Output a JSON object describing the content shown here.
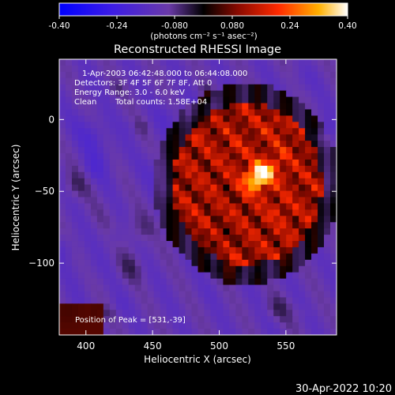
{
  "chart_data": {
    "type": "heatmap",
    "title": "Reconstructed RHESSI Image",
    "xlabel": "Heliocentric X (arcsec)",
    "ylabel": "Heliocentric Y (arcsec)",
    "xlim": [
      380,
      588
    ],
    "ylim": [
      -150,
      42
    ],
    "xticks": [
      400,
      450,
      500,
      550
    ],
    "yticks": [
      0,
      -50,
      -100
    ],
    "colorbar": {
      "range": [
        -0.4,
        0.4
      ],
      "tick_values": [
        -0.4,
        -0.24,
        -0.08,
        0.08,
        0.24,
        0.4
      ],
      "tick_labels": [
        "-0.40",
        "-0.24",
        "-0.080",
        "0.080",
        "0.24",
        "0.40"
      ],
      "unit": "(photons cm⁻² s⁻¹ asec⁻²)"
    },
    "annotations": [
      "1-Apr-2003 06:42:48.000 to 06:44:08.000",
      "Detectors: 3F 4F 5F 6F 7F 8F, Att 0",
      "Energy Range: 3.0 - 6.0 keV",
      "Clean",
      "Total counts: 1.58E+04"
    ],
    "peak_label": "Position of Peak = [531,-39]",
    "peak": {
      "x": 531,
      "y": -39,
      "value": 0.4
    },
    "source_center": {
      "x": 521,
      "y": -45
    }
  },
  "footer_date": "30-Apr-2022 10:20"
}
